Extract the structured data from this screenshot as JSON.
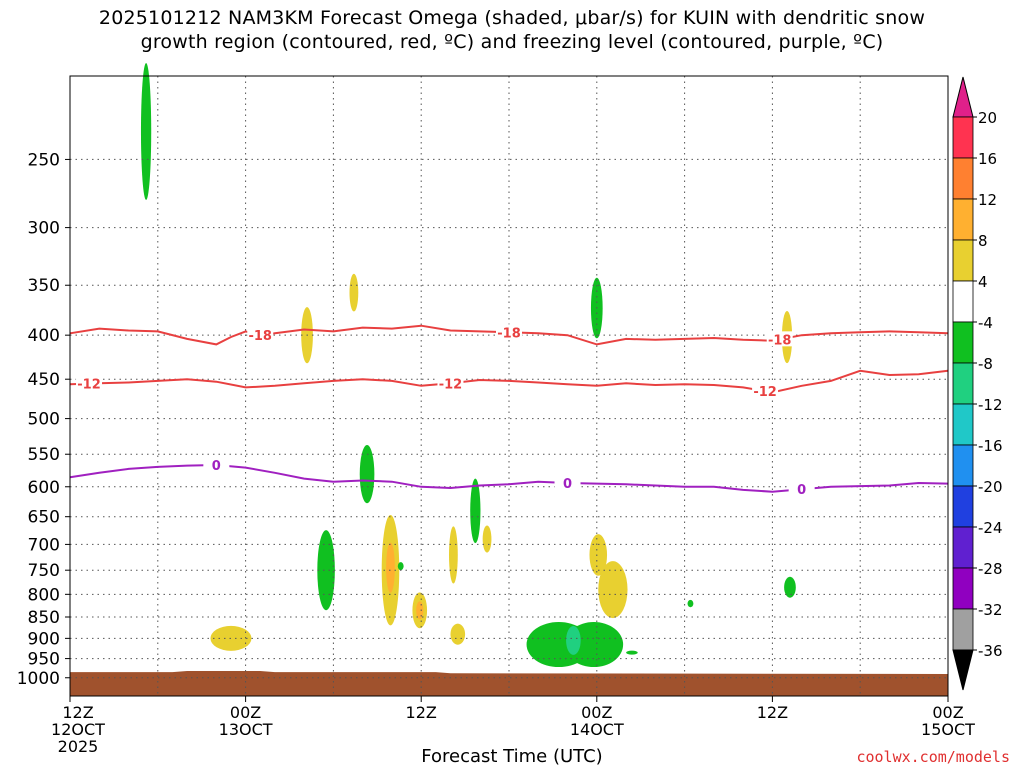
{
  "title": {
    "line1": "2025101212 NAM3KM Forecast Omega (shaded, μbar/s) for KUIN with dendritic snow",
    "line2": "growth region (contoured, red, ºC) and freezing level (contoured, purple, ºC)"
  },
  "chart_data": {
    "type": "heatmap",
    "xlabel": "Forecast Time (UTC)",
    "x_range_hours": [
      0,
      60
    ],
    "y_scale": "log-pressure",
    "y_range_hpa": [
      1050,
      200
    ],
    "y_ticks": [
      "250",
      "300",
      "350",
      "400",
      "450",
      "500",
      "550",
      "600",
      "650",
      "700",
      "750",
      "800",
      "850",
      "900",
      "950",
      "1000"
    ],
    "y_tick_values": [
      250,
      300,
      350,
      400,
      450,
      500,
      550,
      600,
      650,
      700,
      750,
      800,
      850,
      900,
      950,
      1000
    ],
    "x_ticks": [
      {
        "hour": 0,
        "lines": [
          "12Z",
          "12OCT",
          "2025"
        ]
      },
      {
        "hour": 12,
        "lines": [
          "00Z",
          "13OCT"
        ]
      },
      {
        "hour": 24,
        "lines": [
          "12Z"
        ]
      },
      {
        "hour": 36,
        "lines": [
          "00Z",
          "14OCT"
        ]
      },
      {
        "hour": 48,
        "lines": [
          "12Z"
        ]
      },
      {
        "hour": 60,
        "lines": [
          "00Z",
          "15OCT"
        ]
      }
    ],
    "colorbar": {
      "labels": [
        "20",
        "16",
        "12",
        "8",
        "4",
        "-4",
        "-8",
        "-12",
        "-16",
        "-20",
        "-24",
        "-28",
        "-32",
        "-36"
      ],
      "colors": [
        "#ff3350",
        "#ff8030",
        "#ffb030",
        "#e8d030",
        "#ffffff",
        "#10c020",
        "#20d080",
        "#20c8c8",
        "#2090f0",
        "#2040e0",
        "#6020d0",
        "#9000c0",
        "#a0a0a0"
      ],
      "top_color": "#e0208a",
      "bottom_color": "#000000"
    },
    "series": [
      {
        "name": "-18",
        "color": "#e84040",
        "x": [
          0,
          2,
          4,
          6,
          8,
          10,
          11,
          12,
          13,
          14,
          16,
          18,
          20,
          22,
          24,
          26,
          28,
          30,
          32,
          34,
          36,
          38,
          40,
          42,
          44,
          46,
          48,
          50,
          52,
          54,
          56,
          58,
          60
        ],
        "y": [
          398,
          393,
          395,
          396,
          404,
          410,
          402,
          396,
          400,
          398,
          394,
          396,
          392,
          393,
          390,
          395,
          396,
          397,
          398,
          400,
          410,
          404,
          405,
          404,
          403,
          405,
          406,
          400,
          398,
          397,
          396,
          397,
          398
        ]
      },
      {
        "name": "-12",
        "color": "#e84040",
        "x": [
          0,
          2,
          4,
          6,
          8,
          10,
          12,
          14,
          16,
          18,
          20,
          22,
          24,
          26,
          28,
          30,
          32,
          34,
          36,
          38,
          40,
          42,
          44,
          46,
          48,
          50,
          52,
          54,
          56,
          58,
          60
        ],
        "y": [
          456,
          455,
          454,
          452,
          450,
          453,
          460,
          458,
          455,
          452,
          450,
          452,
          458,
          455,
          451,
          452,
          454,
          456,
          458,
          455,
          457,
          456,
          457,
          460,
          466,
          458,
          452,
          440,
          445,
          444,
          440
        ]
      },
      {
        "name": "0",
        "color": "#a020c0",
        "x": [
          0,
          2,
          4,
          6,
          8,
          10,
          12,
          14,
          16,
          18,
          20,
          22,
          24,
          26,
          28,
          30,
          32,
          34,
          36,
          38,
          40,
          42,
          44,
          46,
          48,
          50,
          52,
          54,
          56,
          58,
          60
        ],
        "y": [
          585,
          578,
          572,
          569,
          567,
          566,
          570,
          578,
          587,
          592,
          590,
          592,
          600,
          602,
          598,
          596,
          592,
          594,
          595,
          596,
          598,
          600,
          600,
          605,
          608,
          604,
          600,
          599,
          598,
          594,
          595
        ]
      }
    ],
    "omega_regions": [
      {
        "t": 5.2,
        "p": 232,
        "dt": 0.35,
        "dp": 42,
        "color": "#10c020"
      },
      {
        "t": 19.4,
        "p": 357,
        "dt": 0.3,
        "dp": 18,
        "color": "#e8d030"
      },
      {
        "t": 16.2,
        "p": 400,
        "dt": 0.4,
        "dp": 30,
        "color": "#e8d030"
      },
      {
        "t": 36.0,
        "p": 372,
        "dt": 0.4,
        "dp": 30,
        "color": "#10c020"
      },
      {
        "t": 49.0,
        "p": 402,
        "dt": 0.35,
        "dp": 28,
        "color": "#e8d030"
      },
      {
        "t": 20.3,
        "p": 580,
        "dt": 0.5,
        "dp": 45,
        "color": "#10c020"
      },
      {
        "t": 17.5,
        "p": 750,
        "dt": 0.6,
        "dp": 80,
        "color": "#10c020"
      },
      {
        "t": 21.9,
        "p": 750,
        "dt": 0.6,
        "dp": 110,
        "color": "#e8d030"
      },
      {
        "t": 21.9,
        "p": 745,
        "dt": 0.3,
        "dp": 50,
        "color": "#ffb030"
      },
      {
        "t": 23.9,
        "p": 835,
        "dt": 0.5,
        "dp": 40,
        "color": "#e8d030"
      },
      {
        "t": 23.9,
        "p": 835,
        "dt": 0.25,
        "dp": 20,
        "color": "#ffb030"
      },
      {
        "t": 22.6,
        "p": 742,
        "dt": 0.2,
        "dp": 8,
        "color": "#10c020"
      },
      {
        "t": 27.7,
        "p": 640,
        "dt": 0.35,
        "dp": 55,
        "color": "#10c020"
      },
      {
        "t": 26.2,
        "p": 720,
        "dt": 0.3,
        "dp": 55,
        "color": "#e8d030"
      },
      {
        "t": 28.5,
        "p": 690,
        "dt": 0.3,
        "dp": 25,
        "color": "#e8d030"
      },
      {
        "t": 26.5,
        "p": 890,
        "dt": 0.5,
        "dp": 25,
        "color": "#e8d030"
      },
      {
        "t": 11.0,
        "p": 900,
        "dt": 1.4,
        "dp": 30,
        "color": "#e8d030"
      },
      {
        "t": 33.4,
        "p": 915,
        "dt": 2.2,
        "dp": 55,
        "color": "#10c020"
      },
      {
        "t": 35.8,
        "p": 915,
        "dt": 2.0,
        "dp": 55,
        "color": "#10c020"
      },
      {
        "t": 34.4,
        "p": 905,
        "dt": 0.5,
        "dp": 35,
        "color": "#20d080"
      },
      {
        "t": 37.1,
        "p": 790,
        "dt": 1.0,
        "dp": 60,
        "color": "#e8d030"
      },
      {
        "t": 36.1,
        "p": 720,
        "dt": 0.6,
        "dp": 40,
        "color": "#e8d030"
      },
      {
        "t": 38.4,
        "p": 935,
        "dt": 0.4,
        "dp": 4,
        "color": "#10c020"
      },
      {
        "t": 42.4,
        "p": 820,
        "dt": 0.2,
        "dp": 8,
        "color": "#10c020"
      },
      {
        "t": 49.2,
        "p": 785,
        "dt": 0.4,
        "dp": 22,
        "color": "#10c020"
      }
    ],
    "ground": {
      "color": "#a0522d",
      "top_hpa": [
        {
          "t": 0,
          "p": 985
        },
        {
          "t": 7,
          "p": 985
        },
        {
          "t": 8,
          "p": 982
        },
        {
          "t": 13,
          "p": 982
        },
        {
          "t": 14,
          "p": 985
        },
        {
          "t": 25,
          "p": 985
        },
        {
          "t": 26,
          "p": 988
        },
        {
          "t": 60,
          "p": 990
        }
      ]
    }
  },
  "credit": "coolwx.com/models"
}
